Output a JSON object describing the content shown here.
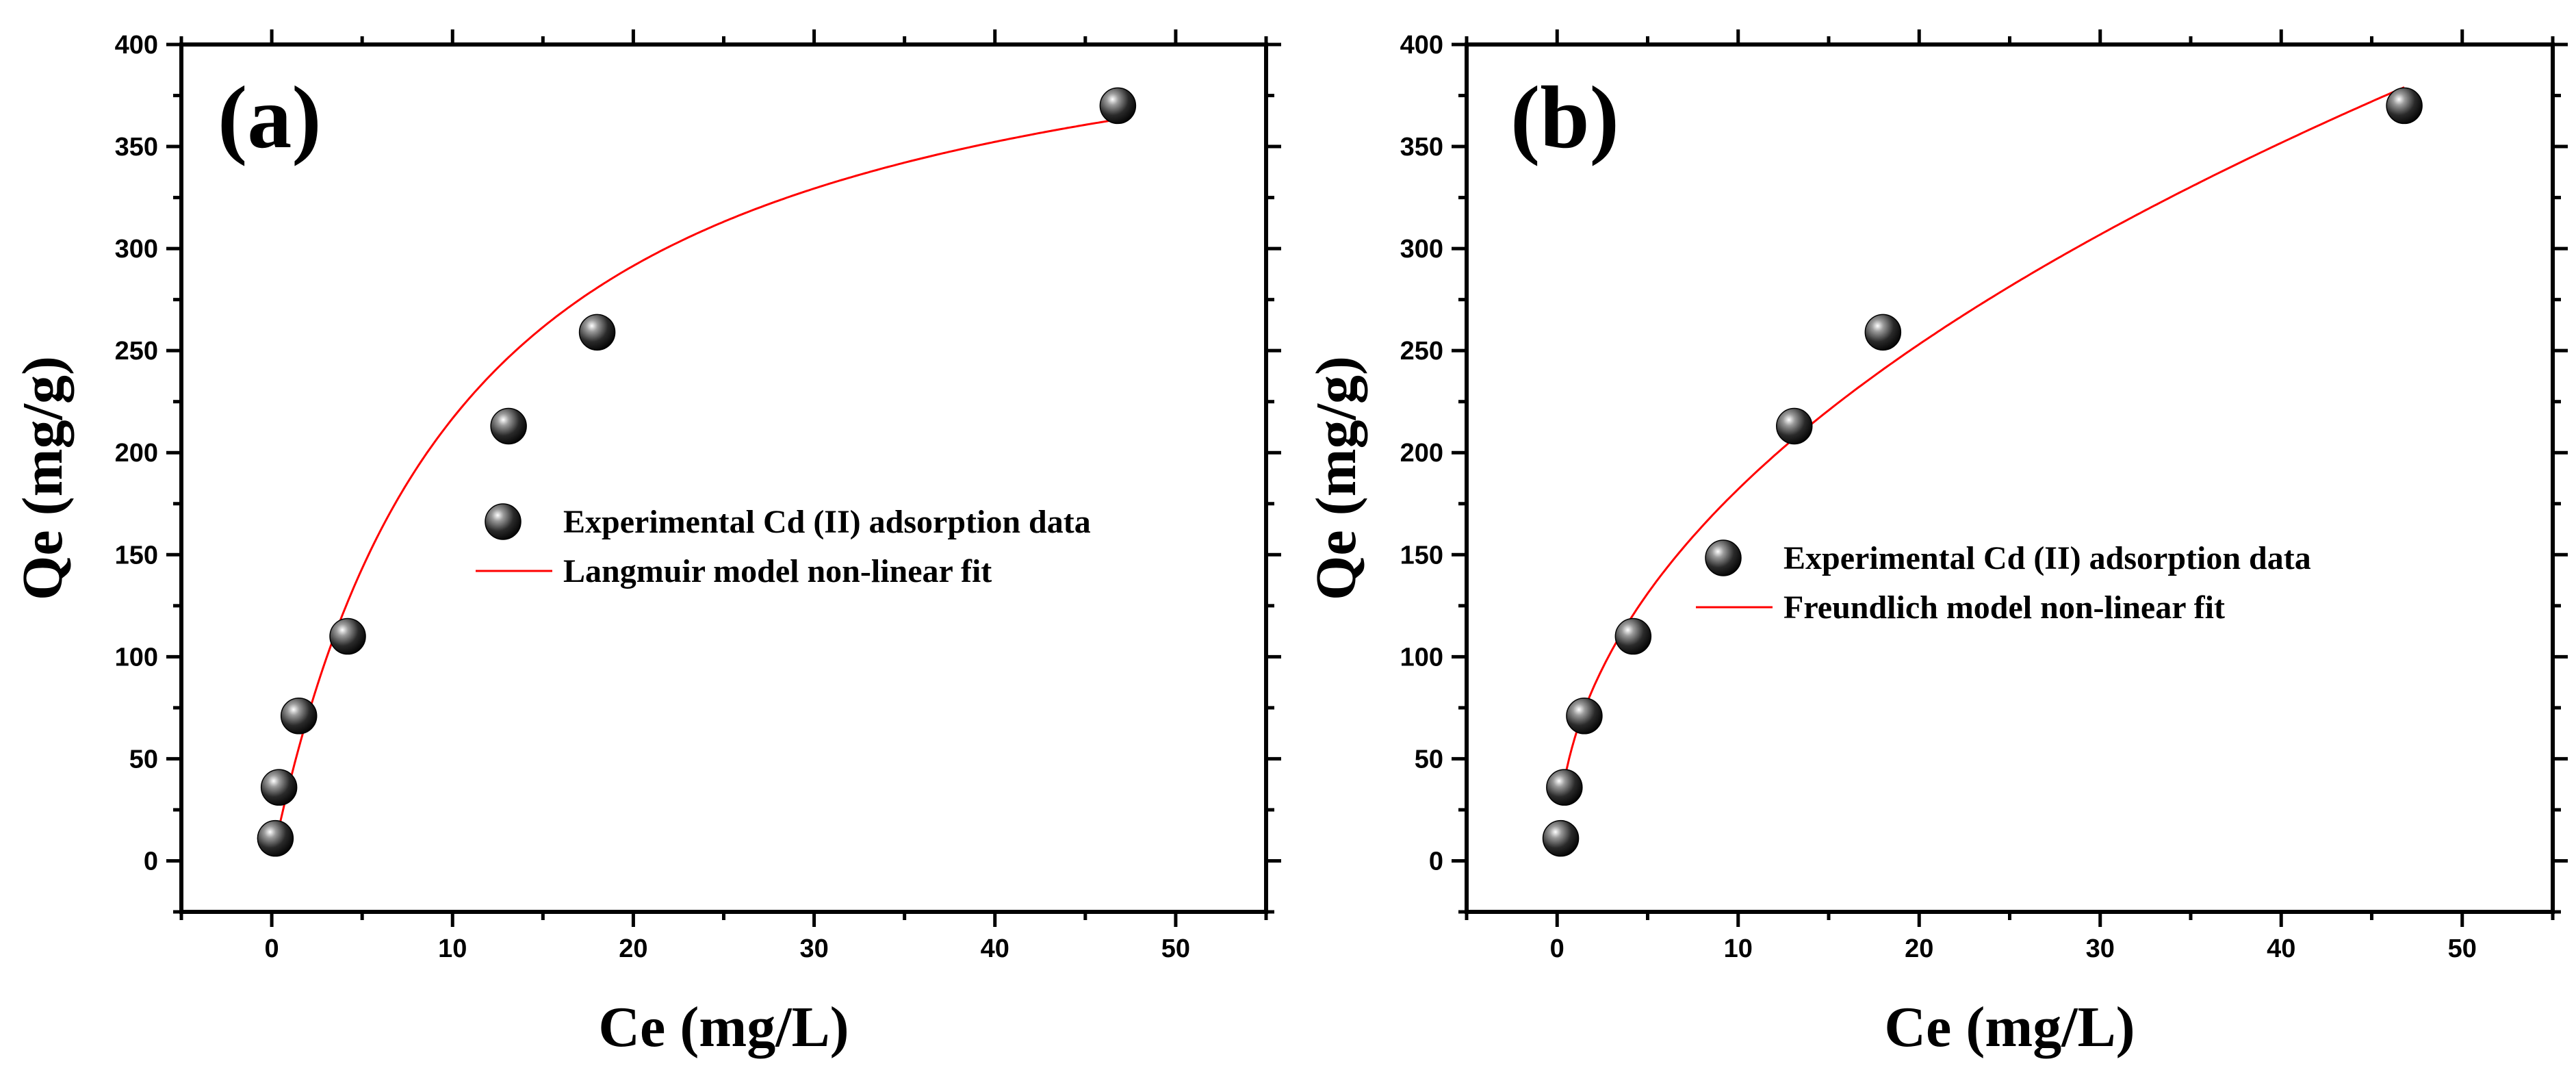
{
  "chart_data": [
    {
      "type": "scatter",
      "panel_label": "(a)",
      "xlabel": "Ce (mg/L)",
      "ylabel": "Qe (mg/g)",
      "xlim": [
        -5,
        55
      ],
      "ylim": [
        -25,
        400
      ],
      "xticks": [
        0,
        10,
        20,
        30,
        40,
        50
      ],
      "yticks": [
        0,
        50,
        100,
        150,
        200,
        250,
        300,
        350,
        400
      ],
      "grid": false,
      "legend_position": "middle-right",
      "series": [
        {
          "name": "Experimental Cd (II) adsorption data",
          "kind": "points",
          "x": [
            0.2,
            0.4,
            1.5,
            4.2,
            13.1,
            18.0,
            46.8
          ],
          "y": [
            11,
            36,
            71,
            110,
            213,
            259,
            370
          ]
        },
        {
          "name": "Langmuir model non-linear fit",
          "kind": "fit",
          "model": "langmuir",
          "qmax": 445,
          "kl": 0.095,
          "x_range": [
            0.2,
            46.8
          ],
          "color": "#ff0000"
        }
      ]
    },
    {
      "type": "scatter",
      "panel_label": "(b)",
      "xlabel": "Ce (mg/L)",
      "ylabel": "Qe (mg/g)",
      "xlim": [
        -5,
        55
      ],
      "ylim": [
        -25,
        400
      ],
      "xticks": [
        0,
        10,
        20,
        30,
        40,
        50
      ],
      "yticks": [
        0,
        50,
        100,
        150,
        200,
        250,
        300,
        350,
        400
      ],
      "grid": false,
      "legend_position": "middle-right",
      "series": [
        {
          "name": "Experimental Cd (II) adsorption data",
          "kind": "points",
          "x": [
            0.2,
            0.4,
            1.5,
            4.2,
            13.1,
            18.0,
            46.8
          ],
          "y": [
            11,
            36,
            71,
            110,
            213,
            259,
            370
          ]
        },
        {
          "name": "Freundlich model non-linear fit",
          "kind": "fit",
          "model": "freundlich",
          "kf": 61,
          "n_inv": 0.475,
          "x_range": [
            0.2,
            46.8
          ],
          "color": "#ff0000"
        }
      ]
    }
  ]
}
